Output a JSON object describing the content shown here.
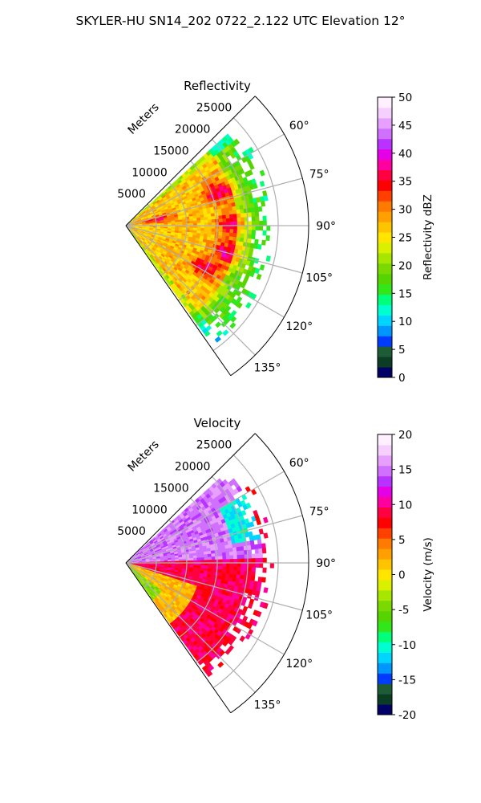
{
  "suptitle": "SKYLER-HU  SN14_202  0722_2.122 UTC Elevation 12°",
  "colors": {
    "grid": "#b0b0b0",
    "frame": "#000000",
    "reflectivity_scale": [
      "#000066",
      "#0a3d24",
      "#1d5c36",
      "#003cff",
      "#0096ff",
      "#00d4ff",
      "#00ffd0",
      "#00ff7a",
      "#33e61a",
      "#55d400",
      "#7ad900",
      "#a6e600",
      "#d9f000",
      "#ffe500",
      "#ffc400",
      "#ffa000",
      "#ff7a00",
      "#ff4000",
      "#ff0000",
      "#ff0040",
      "#ff00a0",
      "#e600e6",
      "#b833ff",
      "#d070ff",
      "#e8a0ff",
      "#f5d0ff",
      "#fff0ff"
    ],
    "velocity_scale": [
      "#000066",
      "#0a3d24",
      "#1d5c36",
      "#003cff",
      "#0096ff",
      "#00d4ff",
      "#00ffd0",
      "#00ff7a",
      "#33e61a",
      "#55d400",
      "#7ad900",
      "#a6e600",
      "#d9f000",
      "#ffe500",
      "#ffc400",
      "#ffa000",
      "#ff7a00",
      "#ff4000",
      "#ff0000",
      "#ff0040",
      "#ff00a0",
      "#e600e6",
      "#b833ff",
      "#d070ff",
      "#e8a0ff",
      "#f5d0ff",
      "#fff0ff"
    ]
  },
  "chart_data": [
    {
      "type": "heatmap",
      "projection": "polar",
      "title": "Reflectivity",
      "radial_label": "Meters",
      "radial_ticks": [
        "5000",
        "10000",
        "15000",
        "20000",
        "25000"
      ],
      "radial_tick_values": [
        5000,
        10000,
        15000,
        20000,
        25000
      ],
      "rlim": [
        0,
        30000
      ],
      "angular_ticks": [
        "60°",
        "75°",
        "90°",
        "105°",
        "120°",
        "135°"
      ],
      "angular_tick_values": [
        60,
        75,
        90,
        105,
        120,
        135
      ],
      "thetalim": [
        45,
        145
      ],
      "grid": true,
      "colorbar": {
        "label": "Reflectivity dBZ",
        "ticks": [
          "0",
          "5",
          "10",
          "15",
          "20",
          "25",
          "30",
          "35",
          "40",
          "45",
          "50"
        ],
        "tick_values": [
          0,
          5,
          10,
          15,
          20,
          25,
          30,
          35,
          40,
          45,
          50
        ],
        "range": [
          0,
          50
        ]
      },
      "echo_extent_m": 22000,
      "typical_value": 27,
      "cores": [
        {
          "azimuth_deg": 70,
          "range_m": 16000,
          "value": 36
        },
        {
          "azimuth_deg": 88,
          "range_m": 17500,
          "value": 36
        },
        {
          "azimuth_deg": 104,
          "range_m": 17000,
          "value": 36
        },
        {
          "azimuth_deg": 117,
          "range_m": 14500,
          "value": 35
        },
        {
          "azimuth_deg": 78,
          "range_m": 5000,
          "value": 35
        }
      ]
    },
    {
      "type": "heatmap",
      "projection": "polar",
      "title": "Velocity",
      "radial_label": "Meters",
      "radial_ticks": [
        "5000",
        "10000",
        "15000",
        "20000",
        "25000"
      ],
      "radial_tick_values": [
        5000,
        10000,
        15000,
        20000,
        25000
      ],
      "rlim": [
        0,
        30000
      ],
      "angular_ticks": [
        "60°",
        "75°",
        "90°",
        "105°",
        "120°",
        "135°"
      ],
      "angular_tick_values": [
        60,
        75,
        90,
        105,
        120,
        135
      ],
      "thetalim": [
        45,
        145
      ],
      "grid": true,
      "colorbar": {
        "label": "Velocity (m/s)",
        "ticks": [
          "-20",
          "-15",
          "-10",
          "-5",
          "0",
          "5",
          "10",
          "15",
          "20"
        ],
        "tick_values": [
          -20,
          -15,
          -10,
          -5,
          0,
          5,
          10,
          15,
          20
        ],
        "range": [
          -20,
          20
        ]
      },
      "echo_extent_m": 22000,
      "regions": [
        {
          "azimuth_range": [
            48,
            88
          ],
          "range_m": [
            0,
            22000
          ],
          "value": 15
        },
        {
          "azimuth_range": [
            88,
            145
          ],
          "range_m": [
            0,
            22000
          ],
          "value": 9
        },
        {
          "azimuth_range": [
            108,
            145
          ],
          "range_m": [
            0,
            12000
          ],
          "value": 2
        },
        {
          "azimuth_range": [
            128,
            145
          ],
          "range_m": [
            0,
            7000
          ],
          "value": -4
        },
        {
          "azimuth_range": [
            60,
            80
          ],
          "range_m": [
            17500,
            22000
          ],
          "value": -11
        }
      ]
    }
  ]
}
